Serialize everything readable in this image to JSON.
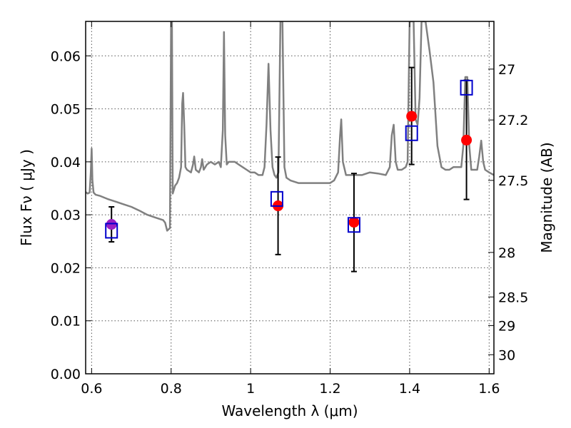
{
  "chart_data": {
    "type": "scatter",
    "xlabel": "Wavelength  λ (μm)",
    "ylabel": "Flux  Fν ( μJy )",
    "ylabel_right": "Magnitude (AB)",
    "xlim": [
      0.585,
      1.612
    ],
    "ylim": [
      0.0,
      0.0665
    ],
    "grid": true,
    "x_ticks": [
      {
        "value": 0.6,
        "label": "0.6"
      },
      {
        "value": 0.8,
        "label": "0.8"
      },
      {
        "value": 1.0,
        "label": "1"
      },
      {
        "value": 1.2,
        "label": "1.2"
      },
      {
        "value": 1.4,
        "label": "1.4"
      },
      {
        "value": 1.6,
        "label": "1.6"
      }
    ],
    "y_ticks": [
      {
        "value": 0.0,
        "label": "0.00"
      },
      {
        "value": 0.01,
        "label": "0.01"
      },
      {
        "value": 0.02,
        "label": "0.02"
      },
      {
        "value": 0.03,
        "label": "0.03"
      },
      {
        "value": 0.04,
        "label": "0.04"
      },
      {
        "value": 0.05,
        "label": "0.05"
      },
      {
        "value": 0.06,
        "label": "0.06"
      }
    ],
    "right_ticks": [
      {
        "flux": 0.0575,
        "label": "27"
      },
      {
        "flux": 0.0479,
        "label": "27.2"
      },
      {
        "flux": 0.0365,
        "label": "27.5"
      },
      {
        "flux": 0.0229,
        "label": "28"
      },
      {
        "flux": 0.0145,
        "label": "28.5"
      },
      {
        "flux": 0.0091,
        "label": "29"
      },
      {
        "flux": 0.0036,
        "label": "30"
      }
    ],
    "colors": {
      "model": "#808080",
      "observed": "#ff0000",
      "observed_first": "#9b1fc4",
      "synthetic": "#0000cc",
      "errorbar": "#000000",
      "grid": "#555555"
    },
    "series": [
      {
        "name": "model spectrum",
        "kind": "line",
        "points": [
          [
            0.585,
            0.0343
          ],
          [
            0.59,
            0.034
          ],
          [
            0.595,
            0.0342
          ],
          [
            0.598,
            0.038
          ],
          [
            0.6,
            0.0425
          ],
          [
            0.602,
            0.0365
          ],
          [
            0.605,
            0.0342
          ],
          [
            0.61,
            0.0338
          ],
          [
            0.62,
            0.0336
          ],
          [
            0.64,
            0.033
          ],
          [
            0.66,
            0.0325
          ],
          [
            0.68,
            0.032
          ],
          [
            0.7,
            0.0315
          ],
          [
            0.72,
            0.0308
          ],
          [
            0.74,
            0.03
          ],
          [
            0.76,
            0.0295
          ],
          [
            0.78,
            0.029
          ],
          [
            0.785,
            0.0285
          ],
          [
            0.79,
            0.027
          ],
          [
            0.797,
            0.0275
          ],
          [
            0.8,
            0.0665
          ],
          [
            0.802,
            0.0665
          ],
          [
            0.804,
            0.034
          ],
          [
            0.81,
            0.0355
          ],
          [
            0.815,
            0.036
          ],
          [
            0.82,
            0.037
          ],
          [
            0.825,
            0.039
          ],
          [
            0.828,
            0.051
          ],
          [
            0.83,
            0.053
          ],
          [
            0.833,
            0.047
          ],
          [
            0.836,
            0.039
          ],
          [
            0.84,
            0.0385
          ],
          [
            0.85,
            0.038
          ],
          [
            0.855,
            0.0395
          ],
          [
            0.858,
            0.041
          ],
          [
            0.862,
            0.0385
          ],
          [
            0.87,
            0.038
          ],
          [
            0.875,
            0.039
          ],
          [
            0.878,
            0.0405
          ],
          [
            0.882,
            0.0385
          ],
          [
            0.89,
            0.0395
          ],
          [
            0.9,
            0.04
          ],
          [
            0.91,
            0.0395
          ],
          [
            0.92,
            0.04
          ],
          [
            0.925,
            0.039
          ],
          [
            0.93,
            0.046
          ],
          [
            0.933,
            0.0645
          ],
          [
            0.936,
            0.045
          ],
          [
            0.94,
            0.0395
          ],
          [
            0.945,
            0.04
          ],
          [
            0.95,
            0.04
          ],
          [
            0.96,
            0.04
          ],
          [
            0.97,
            0.0395
          ],
          [
            0.98,
            0.039
          ],
          [
            0.99,
            0.0385
          ],
          [
            1.0,
            0.038
          ],
          [
            1.01,
            0.038
          ],
          [
            1.02,
            0.0375
          ],
          [
            1.03,
            0.0375
          ],
          [
            1.035,
            0.039
          ],
          [
            1.04,
            0.047
          ],
          [
            1.045,
            0.0585
          ],
          [
            1.05,
            0.046
          ],
          [
            1.055,
            0.039
          ],
          [
            1.06,
            0.0375
          ],
          [
            1.065,
            0.037
          ],
          [
            1.07,
            0.038
          ],
          [
            1.075,
            0.0665
          ],
          [
            1.08,
            0.0665
          ],
          [
            1.085,
            0.039
          ],
          [
            1.09,
            0.037
          ],
          [
            1.1,
            0.0365
          ],
          [
            1.12,
            0.036
          ],
          [
            1.14,
            0.036
          ],
          [
            1.16,
            0.036
          ],
          [
            1.18,
            0.036
          ],
          [
            1.2,
            0.036
          ],
          [
            1.21,
            0.0365
          ],
          [
            1.22,
            0.038
          ],
          [
            1.225,
            0.045
          ],
          [
            1.228,
            0.048
          ],
          [
            1.232,
            0.04
          ],
          [
            1.24,
            0.0375
          ],
          [
            1.26,
            0.0375
          ],
          [
            1.28,
            0.0375
          ],
          [
            1.3,
            0.038
          ],
          [
            1.32,
            0.0378
          ],
          [
            1.34,
            0.0375
          ],
          [
            1.35,
            0.039
          ],
          [
            1.355,
            0.045
          ],
          [
            1.36,
            0.047
          ],
          [
            1.365,
            0.04
          ],
          [
            1.37,
            0.0385
          ],
          [
            1.38,
            0.0385
          ],
          [
            1.39,
            0.039
          ],
          [
            1.395,
            0.04
          ],
          [
            1.4,
            0.0665
          ],
          [
            1.41,
            0.0665
          ],
          [
            1.415,
            0.048
          ],
          [
            1.42,
            0.047
          ],
          [
            1.425,
            0.052
          ],
          [
            1.43,
            0.0665
          ],
          [
            1.44,
            0.0665
          ],
          [
            1.45,
            0.061
          ],
          [
            1.46,
            0.055
          ],
          [
            1.47,
            0.043
          ],
          [
            1.48,
            0.039
          ],
          [
            1.49,
            0.0385
          ],
          [
            1.5,
            0.0385
          ],
          [
            1.51,
            0.039
          ],
          [
            1.52,
            0.039
          ],
          [
            1.53,
            0.039
          ],
          [
            1.535,
            0.043
          ],
          [
            1.54,
            0.056
          ],
          [
            1.545,
            0.056
          ],
          [
            1.55,
            0.043
          ],
          [
            1.555,
            0.0385
          ],
          [
            1.56,
            0.0385
          ],
          [
            1.57,
            0.0385
          ],
          [
            1.575,
            0.041
          ],
          [
            1.58,
            0.044
          ],
          [
            1.585,
            0.04
          ],
          [
            1.59,
            0.0385
          ],
          [
            1.6,
            0.038
          ],
          [
            1.612,
            0.0375
          ]
        ]
      },
      {
        "name": "observed photometry",
        "kind": "errorbar",
        "points": [
          {
            "x": 0.65,
            "y": 0.0282,
            "err_lo": 0.0033,
            "err_hi": 0.0033
          },
          {
            "x": 1.069,
            "y": 0.0317,
            "err_lo": 0.0092,
            "err_hi": 0.0092
          },
          {
            "x": 1.26,
            "y": 0.0286,
            "err_lo": 0.0093,
            "err_hi": 0.0092
          },
          {
            "x": 1.405,
            "y": 0.0486,
            "err_lo": 0.0091,
            "err_hi": 0.0092
          },
          {
            "x": 1.543,
            "y": 0.0441,
            "err_lo": 0.0112,
            "err_hi": 0.0113
          }
        ]
      },
      {
        "name": "synthetic photometry",
        "kind": "marker",
        "points": [
          {
            "x": 0.65,
            "y": 0.027
          },
          {
            "x": 1.066,
            "y": 0.033
          },
          {
            "x": 1.26,
            "y": 0.0281
          },
          {
            "x": 1.405,
            "y": 0.0454
          },
          {
            "x": 1.543,
            "y": 0.054
          }
        ]
      }
    ]
  }
}
